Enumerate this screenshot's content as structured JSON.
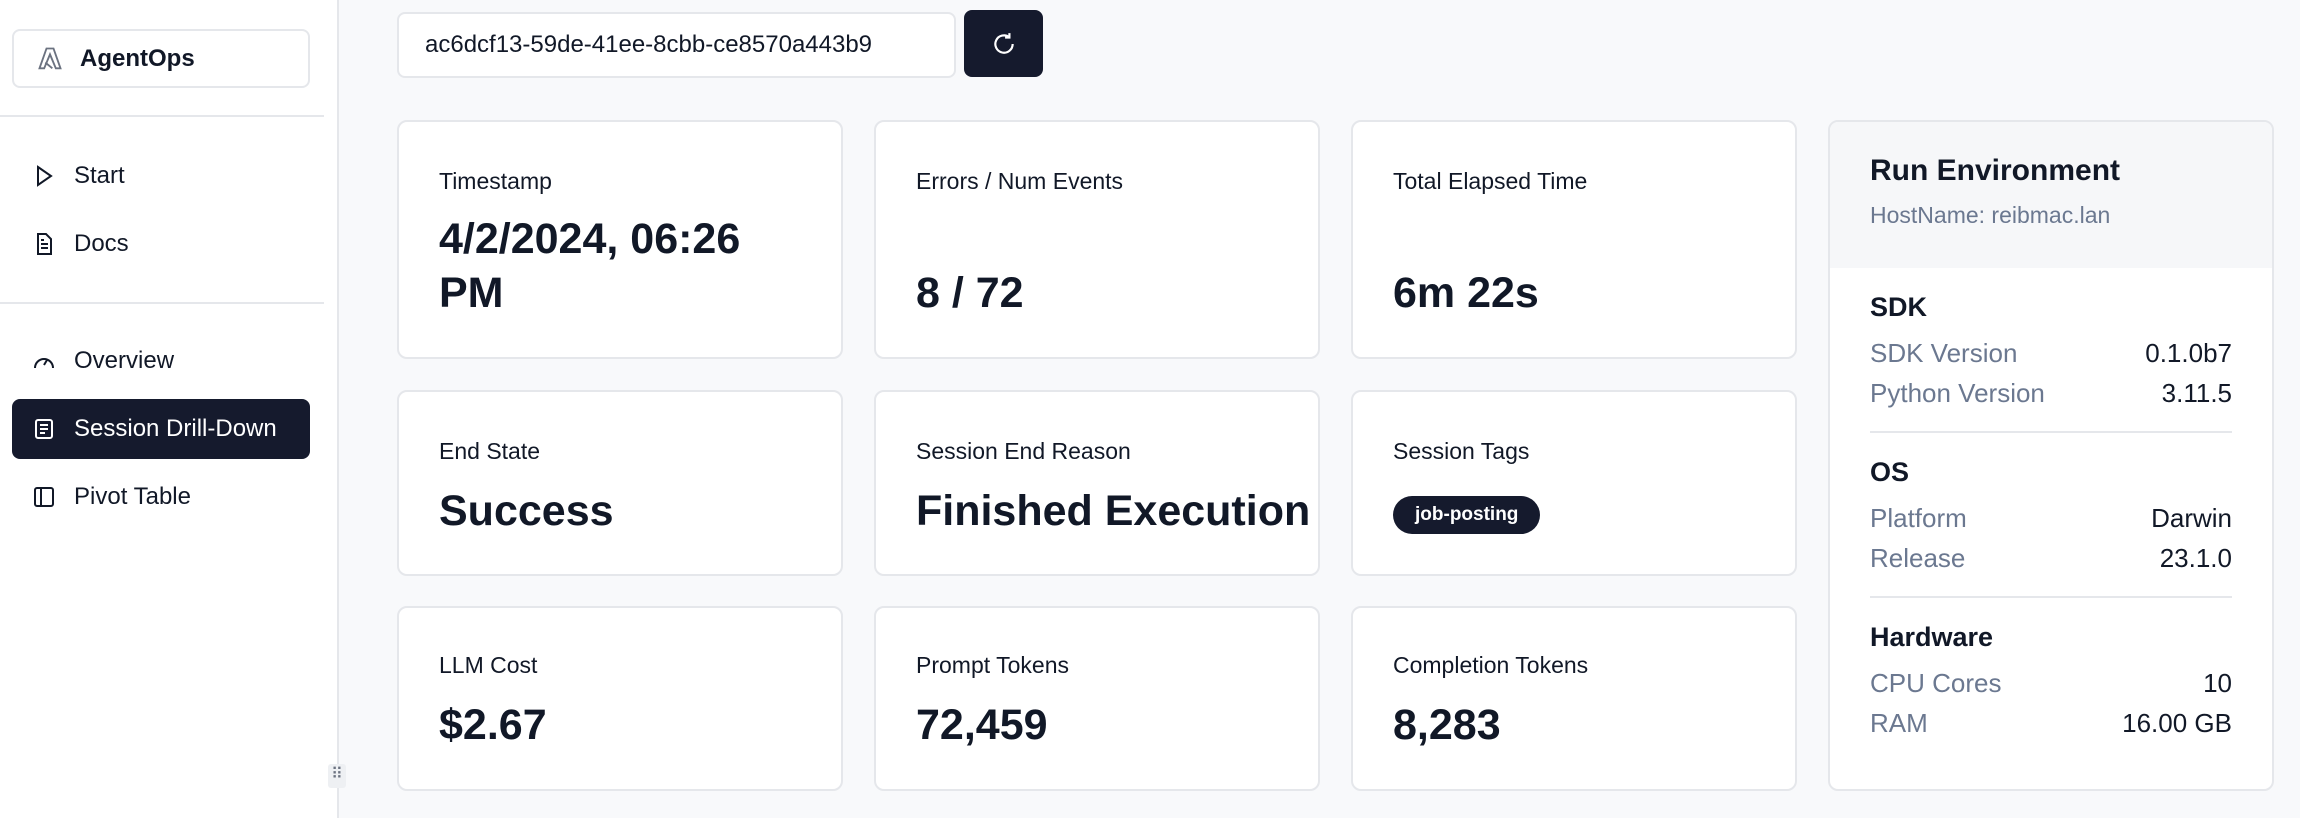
{
  "sidebar": {
    "brand": "AgentOps",
    "nav": [
      {
        "label": "Start",
        "icon": "play-icon"
      },
      {
        "label": "Docs",
        "icon": "document-icon"
      },
      {
        "label": "Overview",
        "icon": "gauge-icon"
      },
      {
        "label": "Session Drill-Down",
        "icon": "list-icon",
        "active": true
      },
      {
        "label": "Pivot Table",
        "icon": "panel-icon"
      }
    ]
  },
  "session": {
    "id": "ac6dcf13-59de-41ee-8cbb-ce8570a443b9",
    "refresh_icon": "refresh-icon"
  },
  "cards": {
    "timestamp": {
      "label": "Timestamp",
      "value": "4/2/2024, 06:26 PM"
    },
    "errors": {
      "label": "Errors / Num Events",
      "value": "8 / 72"
    },
    "elapsed": {
      "label": "Total Elapsed Time",
      "value": "6m 22s"
    },
    "end_state": {
      "label": "End State",
      "value": "Success"
    },
    "end_reason": {
      "label": "Session End Reason",
      "value": "Finished Execution"
    },
    "tags": {
      "label": "Session Tags",
      "values": [
        "job-posting"
      ]
    },
    "cost": {
      "label": "LLM Cost",
      "value": "$2.67"
    },
    "prompt": {
      "label": "Prompt Tokens",
      "value": "72,459"
    },
    "completion": {
      "label": "Completion Tokens",
      "value": "8,283"
    }
  },
  "env": {
    "title": "Run Environment",
    "host": "HostName: reibmac.lan",
    "sdk": {
      "title": "SDK",
      "rows": [
        {
          "k": "SDK Version",
          "v": "0.1.0b7"
        },
        {
          "k": "Python Version",
          "v": "3.11.5"
        }
      ]
    },
    "os": {
      "title": "OS",
      "rows": [
        {
          "k": "Platform",
          "v": "Darwin"
        },
        {
          "k": "Release",
          "v": "23.1.0"
        }
      ]
    },
    "hw": {
      "title": "Hardware",
      "rows": [
        {
          "k": "CPU Cores",
          "v": "10"
        },
        {
          "k": "RAM",
          "v": "16.00 GB"
        }
      ]
    }
  }
}
